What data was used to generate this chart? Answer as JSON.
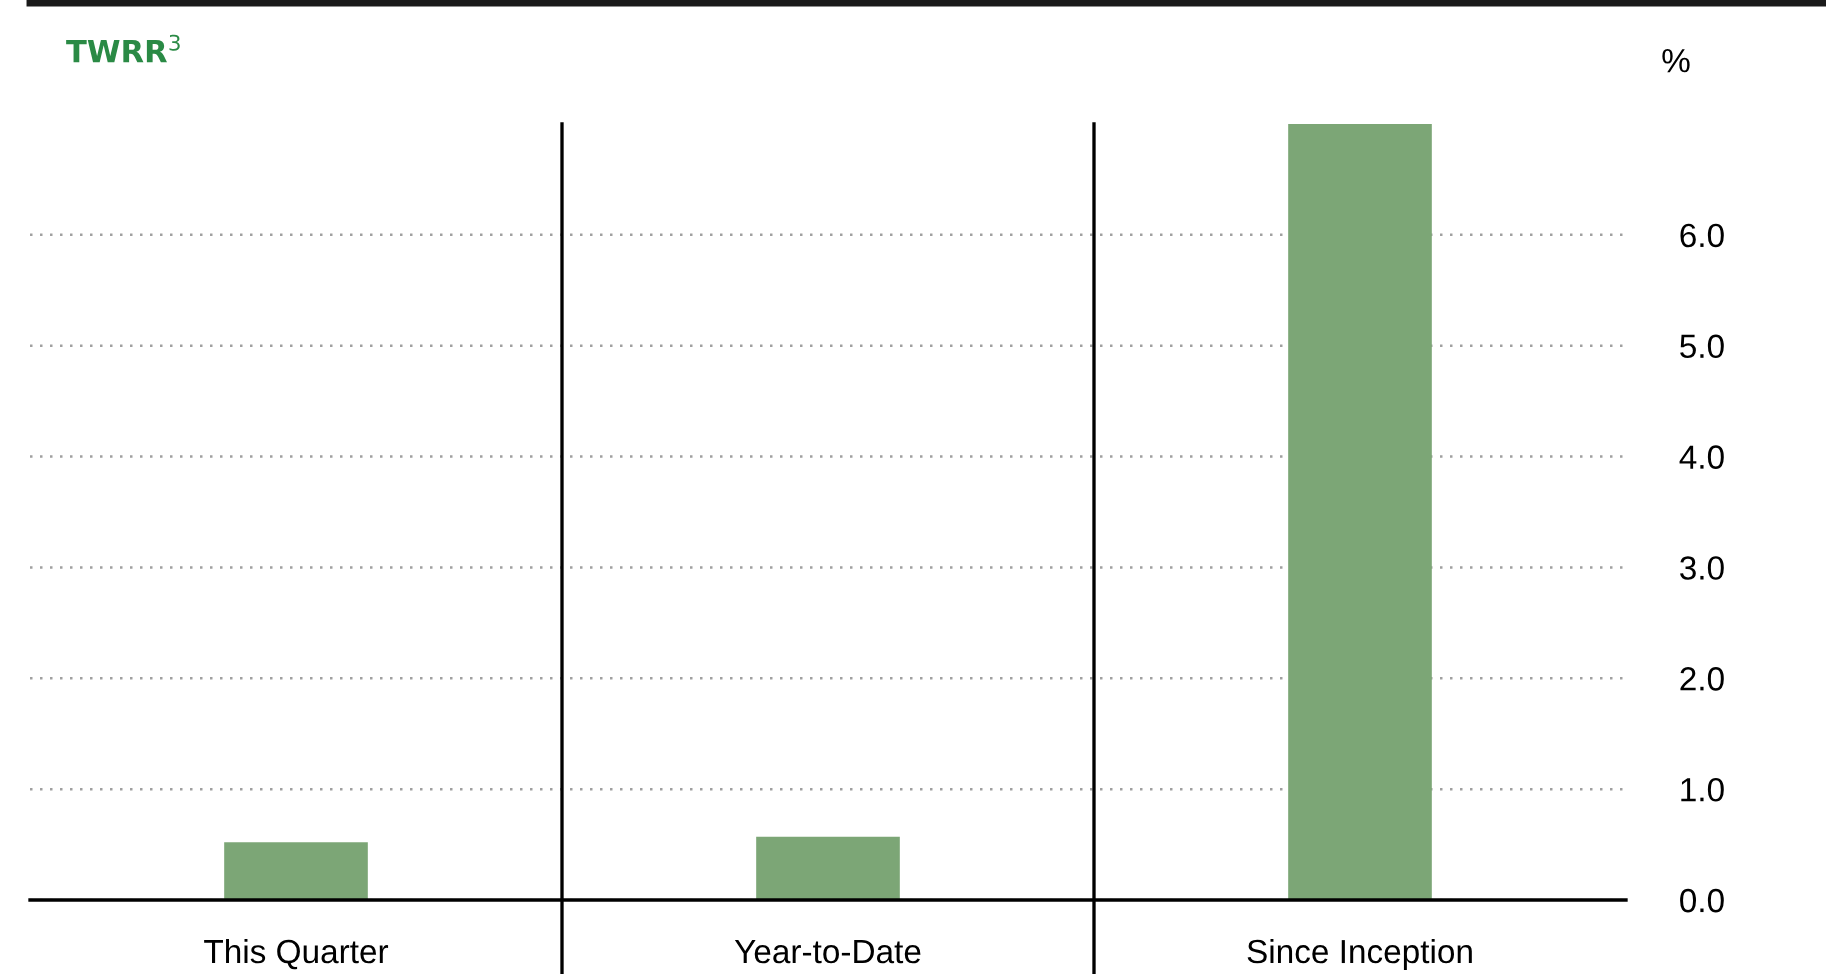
{
  "chart_data": {
    "type": "bar",
    "title": "TWRR$^{3}$",
    "ylabel": "%",
    "categories": [
      "This Quarter",
      "Year-to-Date",
      "Since Inception"
    ],
    "values": [
      0.52,
      0.57,
      7.0
    ],
    "color": "#7ca676",
    "ylim": [
      0,
      7.0
    ],
    "yticks": [
      {
        "value": 0,
        "label": "0.0"
      },
      {
        "value": 1,
        "label": "1.0"
      },
      {
        "value": 2,
        "label": "2.0"
      },
      {
        "value": 3,
        "label": "3.0"
      },
      {
        "value": 4,
        "label": "4.0"
      },
      {
        "value": 5,
        "label": "5.0"
      },
      {
        "value": 6,
        "label": "6.0"
      }
    ],
    "grid": "y",
    "legend": false
  }
}
